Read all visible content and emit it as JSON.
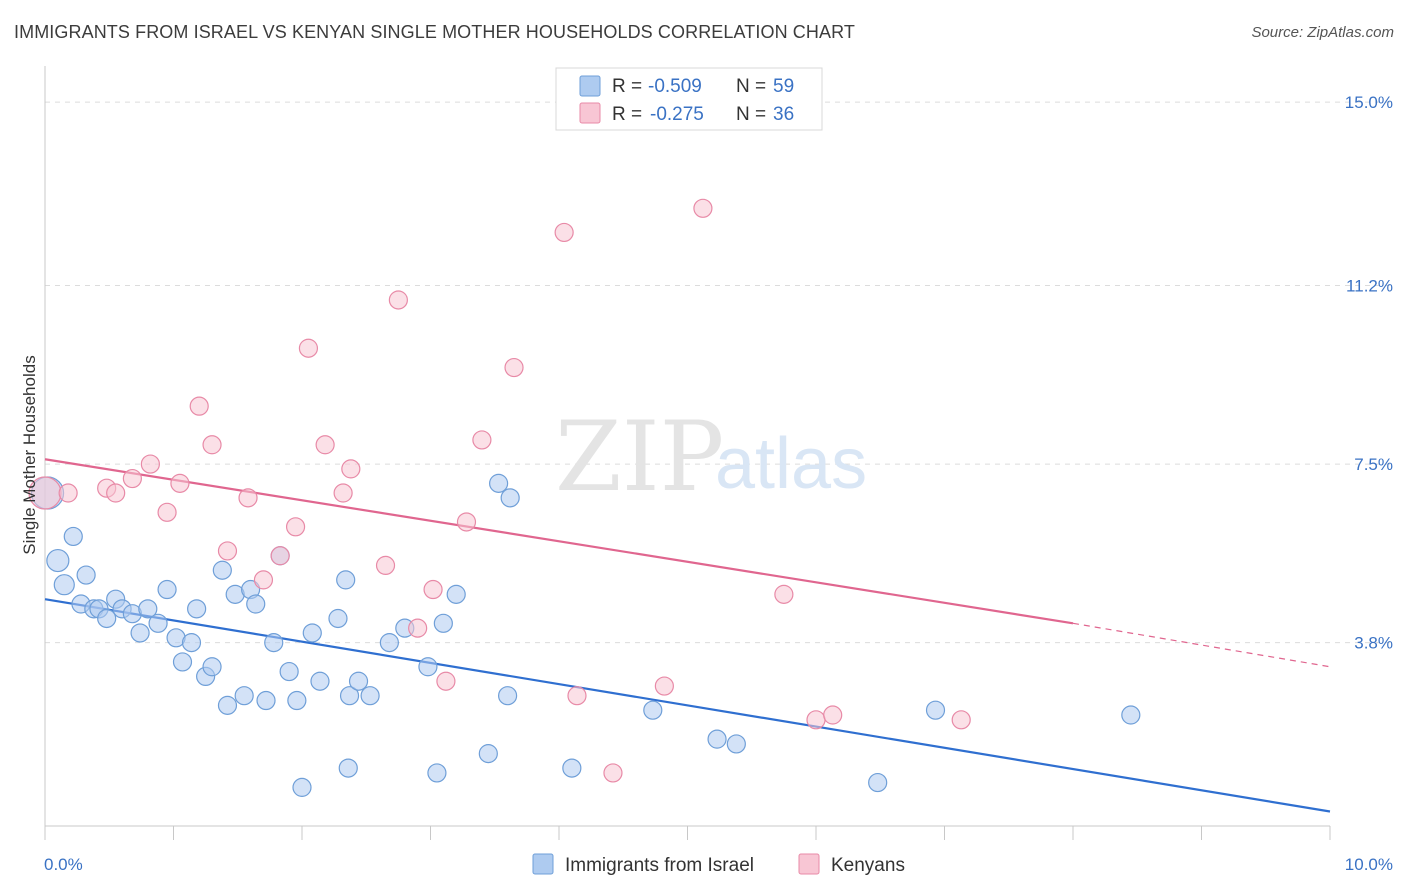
{
  "title": "IMMIGRANTS FROM ISRAEL VS KENYAN SINGLE MOTHER HOUSEHOLDS CORRELATION CHART",
  "source": "Source: ZipAtlas.com",
  "watermark": {
    "zip": "ZIP",
    "atlas": "atlas"
  },
  "legend": {
    "rows": [
      {
        "r_label": "R =",
        "r_value": "-0.509",
        "n_label": "N =",
        "n_value": "59",
        "color": "#aecbf0",
        "stroke": "#6f9fd8"
      },
      {
        "r_label": "R =",
        "r_value": "-0.275",
        "n_label": "N =",
        "n_value": "36",
        "color": "#f8c6d4",
        "stroke": "#e88aa7"
      }
    ]
  },
  "bottom_legend": [
    {
      "label": "Immigrants from Israel",
      "color": "#aecbf0",
      "stroke": "#6f9fd8"
    },
    {
      "label": "Kenyans",
      "color": "#f8c6d4",
      "stroke": "#e88aa7"
    }
  ],
  "chart_data": {
    "type": "scatter",
    "title": "IMMIGRANTS FROM ISRAEL VS KENYAN SINGLE MOTHER HOUSEHOLDS CORRELATION CHART",
    "xlabel": "",
    "ylabel": "Single Mother Households",
    "xlim": [
      0,
      10
    ],
    "ylim": [
      0,
      15.5
    ],
    "x_tick_labels": [
      "0.0%",
      "10.0%"
    ],
    "y_ticks": [
      3.8,
      7.5,
      11.2,
      15.0
    ],
    "y_tick_labels": [
      "3.8%",
      "7.5%",
      "11.2%",
      "15.0%"
    ],
    "grid": "horizontal dashed",
    "legend_position": "top-center",
    "series": [
      {
        "name": "Immigrants from Israel",
        "color": "#6f9fd8",
        "fill": "#aecbf0",
        "trend": {
          "x": [
            0,
            10
          ],
          "y": [
            4.7,
            0.3
          ],
          "color": "#2f6fd0",
          "dashed_from": null
        },
        "points": [
          [
            0.02,
            6.9,
            16
          ],
          [
            0.1,
            5.5,
            11
          ],
          [
            0.15,
            5.0,
            10
          ],
          [
            0.22,
            6.0,
            9
          ],
          [
            0.28,
            4.6,
            9
          ],
          [
            0.32,
            5.2,
            9
          ],
          [
            0.38,
            4.5,
            9
          ],
          [
            0.42,
            4.5,
            9
          ],
          [
            0.48,
            4.3,
            9
          ],
          [
            0.55,
            4.7,
            9
          ],
          [
            0.6,
            4.5,
            9
          ],
          [
            0.68,
            4.4,
            9
          ],
          [
            0.74,
            4.0,
            9
          ],
          [
            0.8,
            4.5,
            9
          ],
          [
            0.88,
            4.2,
            9
          ],
          [
            0.95,
            4.9,
            9
          ],
          [
            1.02,
            3.9,
            9
          ],
          [
            1.07,
            3.4,
            9
          ],
          [
            1.14,
            3.8,
            9
          ],
          [
            1.18,
            4.5,
            9
          ],
          [
            1.25,
            3.1,
            9
          ],
          [
            1.3,
            3.3,
            9
          ],
          [
            1.38,
            5.3,
            9
          ],
          [
            1.42,
            2.5,
            9
          ],
          [
            1.48,
            4.8,
            9
          ],
          [
            1.55,
            2.7,
            9
          ],
          [
            1.6,
            4.9,
            9
          ],
          [
            1.64,
            4.6,
            9
          ],
          [
            1.72,
            2.6,
            9
          ],
          [
            1.78,
            3.8,
            9
          ],
          [
            1.83,
            5.6,
            9
          ],
          [
            1.9,
            3.2,
            9
          ],
          [
            1.96,
            2.6,
            9
          ],
          [
            2.0,
            0.8,
            9
          ],
          [
            2.08,
            4.0,
            9
          ],
          [
            2.14,
            3.0,
            9
          ],
          [
            2.28,
            4.3,
            9
          ],
          [
            2.34,
            5.1,
            9
          ],
          [
            2.36,
            1.2,
            9
          ],
          [
            2.37,
            2.7,
            9
          ],
          [
            2.44,
            3.0,
            9
          ],
          [
            2.53,
            2.7,
            9
          ],
          [
            2.68,
            3.8,
            9
          ],
          [
            2.8,
            4.1,
            9
          ],
          [
            2.98,
            3.3,
            9
          ],
          [
            3.05,
            1.1,
            9
          ],
          [
            3.1,
            4.2,
            9
          ],
          [
            3.2,
            4.8,
            9
          ],
          [
            3.45,
            1.5,
            9
          ],
          [
            3.53,
            7.1,
            9
          ],
          [
            3.62,
            6.8,
            9
          ],
          [
            3.6,
            2.7,
            9
          ],
          [
            4.1,
            1.2,
            9
          ],
          [
            4.73,
            2.4,
            9
          ],
          [
            5.23,
            1.8,
            9
          ],
          [
            5.38,
            1.7,
            9
          ],
          [
            6.48,
            0.9,
            9
          ],
          [
            6.93,
            2.4,
            9
          ],
          [
            8.45,
            2.3,
            9
          ]
        ]
      },
      {
        "name": "Kenyans",
        "color": "#e88aa7",
        "fill": "#f8c6d4",
        "trend": {
          "x": [
            0,
            8.0,
            10
          ],
          "y": [
            7.6,
            4.2,
            3.3
          ],
          "color": "#e0668f",
          "dashed_from": 8.0
        },
        "points": [
          [
            0.0,
            6.9,
            16
          ],
          [
            0.18,
            6.9,
            9
          ],
          [
            0.48,
            7.0,
            9
          ],
          [
            0.55,
            6.9,
            9
          ],
          [
            0.68,
            7.2,
            9
          ],
          [
            0.82,
            7.5,
            9
          ],
          [
            0.95,
            6.5,
            9
          ],
          [
            1.05,
            7.1,
            9
          ],
          [
            1.2,
            8.7,
            9
          ],
          [
            1.3,
            7.9,
            9
          ],
          [
            1.42,
            5.7,
            9
          ],
          [
            1.58,
            6.8,
            9
          ],
          [
            1.7,
            5.1,
            9
          ],
          [
            1.83,
            5.6,
            9
          ],
          [
            1.95,
            6.2,
            9
          ],
          [
            2.05,
            9.9,
            9
          ],
          [
            2.18,
            7.9,
            9
          ],
          [
            2.32,
            6.9,
            9
          ],
          [
            2.38,
            7.4,
            9
          ],
          [
            2.65,
            5.4,
            9
          ],
          [
            2.75,
            10.9,
            9
          ],
          [
            2.9,
            4.1,
            9
          ],
          [
            3.02,
            4.9,
            9
          ],
          [
            3.12,
            3.0,
            9
          ],
          [
            3.28,
            6.3,
            9
          ],
          [
            3.4,
            8.0,
            9
          ],
          [
            3.65,
            9.5,
            9
          ],
          [
            4.04,
            12.3,
            9
          ],
          [
            4.14,
            2.7,
            9
          ],
          [
            4.42,
            1.1,
            9
          ],
          [
            4.82,
            2.9,
            9
          ],
          [
            5.12,
            12.8,
            9
          ],
          [
            5.75,
            4.8,
            9
          ],
          [
            6.0,
            2.2,
            9
          ],
          [
            6.13,
            2.3,
            9
          ],
          [
            7.13,
            2.2,
            9
          ]
        ]
      }
    ]
  }
}
